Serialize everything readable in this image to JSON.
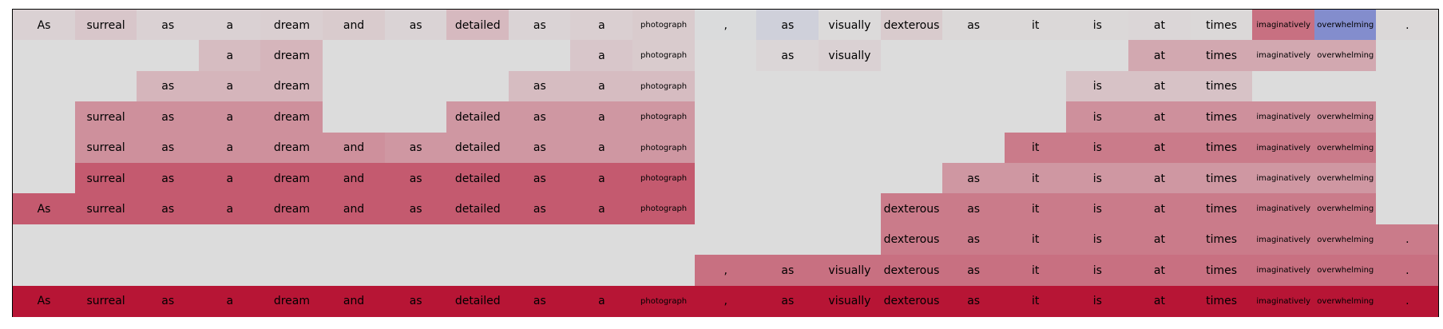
{
  "chart_data": {
    "type": "heatmap",
    "colorscale": "diverging coolwarm (blue = negative, grey = 0, red = positive)",
    "empty_cell_color": "#dcdcdc",
    "tokens": [
      "As",
      "surreal",
      "as",
      "a",
      "dream",
      "and",
      "as",
      "detailed",
      "as",
      "a",
      "photograph",
      ",",
      "as",
      "visually",
      "dexterous",
      "as",
      "it",
      "is",
      "at",
      "times",
      "imaginatively",
      "overwhelming",
      "."
    ],
    "rows": [
      [
        0.05,
        0.1,
        0.05,
        0.05,
        0.06,
        0.08,
        0.04,
        0.16,
        0.04,
        0.06,
        0.08,
        -0.01,
        -0.08,
        0.01,
        0.08,
        0.02,
        0.02,
        0.02,
        0.03,
        0.02,
        0.5,
        -0.55,
        0.02
      ],
      [
        null,
        null,
        null,
        0.15,
        0.18,
        null,
        null,
        null,
        null,
        0.1,
        0.08,
        null,
        0.03,
        0.05,
        null,
        null,
        null,
        null,
        0.24,
        0.24,
        0.24,
        0.24,
        null
      ],
      [
        null,
        null,
        0.18,
        0.18,
        0.18,
        null,
        null,
        null,
        0.15,
        0.15,
        0.15,
        null,
        null,
        null,
        null,
        null,
        null,
        0.12,
        0.12,
        0.12,
        null,
        null,
        null
      ],
      [
        null,
        0.35,
        0.35,
        0.35,
        0.35,
        null,
        null,
        0.32,
        0.32,
        0.32,
        0.32,
        null,
        null,
        null,
        null,
        null,
        null,
        0.35,
        0.35,
        0.35,
        0.35,
        0.35,
        null
      ],
      [
        null,
        0.35,
        0.35,
        0.35,
        0.35,
        0.35,
        0.32,
        0.32,
        0.32,
        0.32,
        0.32,
        null,
        null,
        null,
        null,
        null,
        0.45,
        0.45,
        0.45,
        0.45,
        0.45,
        0.45,
        null
      ],
      [
        null,
        0.6,
        0.6,
        0.6,
        0.6,
        0.6,
        0.6,
        0.6,
        0.6,
        0.6,
        0.6,
        null,
        null,
        null,
        null,
        0.32,
        0.32,
        0.32,
        0.32,
        0.32,
        0.32,
        0.32,
        null
      ],
      [
        0.6,
        0.6,
        0.6,
        0.6,
        0.6,
        0.6,
        0.6,
        0.6,
        0.6,
        0.6,
        0.6,
        null,
        null,
        null,
        0.45,
        0.45,
        0.45,
        0.45,
        0.45,
        0.45,
        0.45,
        0.45,
        null
      ],
      [
        null,
        null,
        null,
        null,
        null,
        null,
        null,
        null,
        null,
        null,
        null,
        null,
        null,
        null,
        0.45,
        0.45,
        0.45,
        0.45,
        0.45,
        0.45,
        0.45,
        0.45,
        0.45
      ],
      [
        null,
        null,
        null,
        null,
        null,
        null,
        null,
        null,
        null,
        null,
        null,
        0.5,
        0.5,
        0.5,
        0.5,
        0.5,
        0.5,
        0.5,
        0.5,
        0.5,
        0.5,
        0.5,
        0.5
      ],
      [
        0.92,
        0.92,
        0.92,
        0.92,
        0.92,
        0.92,
        0.92,
        0.92,
        0.92,
        0.92,
        0.92,
        0.92,
        0.92,
        0.92,
        0.92,
        0.92,
        0.92,
        0.92,
        0.92,
        0.92,
        0.92,
        0.92,
        0.92
      ]
    ]
  }
}
